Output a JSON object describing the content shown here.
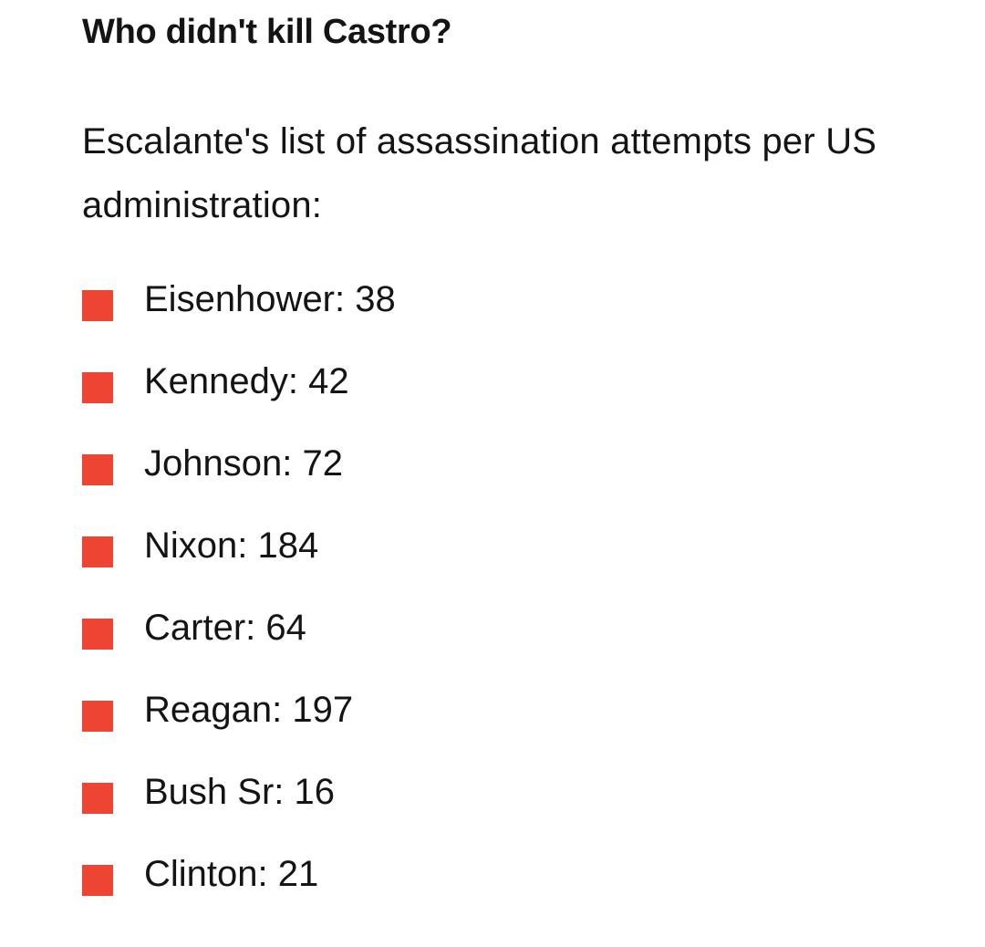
{
  "headline": "Who didn't kill Castro?",
  "intro": "Escalante's list of assassination attempts per US administration:",
  "colors": {
    "bullet": "#ee4433",
    "text": "#141414",
    "background": "#ffffff"
  },
  "list": [
    {
      "text": "Eisenhower: 38",
      "name": "Eisenhower",
      "value": 38
    },
    {
      "text": "Kennedy: 42",
      "name": "Kennedy",
      "value": 42
    },
    {
      "text": "Johnson: 72",
      "name": "Johnson",
      "value": 72
    },
    {
      "text": "Nixon: 184",
      "name": "Nixon",
      "value": 184
    },
    {
      "text": "Carter: 64",
      "name": "Carter",
      "value": 64
    },
    {
      "text": "Reagan: 197",
      "name": "Reagan",
      "value": 197
    },
    {
      "text": "Bush Sr: 16",
      "name": "Bush Sr",
      "value": 16
    },
    {
      "text": "Clinton: 21",
      "name": "Clinton",
      "value": 21
    }
  ]
}
